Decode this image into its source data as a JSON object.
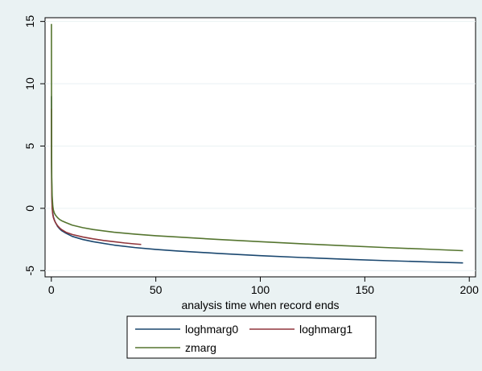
{
  "chart_data": {
    "type": "line",
    "title": "",
    "xlabel": "analysis time when record ends",
    "ylabel": "",
    "xlim": [
      -3,
      203
    ],
    "ylim": [
      -5.5,
      15.3
    ],
    "xticks": [
      0,
      50,
      100,
      150,
      200
    ],
    "yticks": [
      -5,
      0,
      5,
      10,
      15
    ],
    "xtick_labels": [
      "0",
      "50",
      "100",
      "150",
      "200"
    ],
    "ytick_labels": [
      "-5",
      "0",
      "5",
      "10",
      "15"
    ],
    "grid": "horizontal",
    "legend_position": "bottom",
    "series": [
      {
        "name": "loghmarg0",
        "color": "#1a476f",
        "x": [
          0.05,
          0.1,
          0.2,
          0.4,
          0.7,
          1,
          1.5,
          2,
          3,
          4,
          5,
          7,
          10,
          15,
          20,
          30,
          40,
          50,
          60,
          80,
          100,
          120,
          140,
          160,
          180,
          197
        ],
        "y": [
          9.0,
          4.0,
          1.5,
          0.2,
          -0.4,
          -0.7,
          -0.95,
          -1.15,
          -1.45,
          -1.65,
          -1.8,
          -2.0,
          -2.25,
          -2.5,
          -2.68,
          -2.95,
          -3.15,
          -3.3,
          -3.42,
          -3.62,
          -3.8,
          -3.95,
          -4.08,
          -4.2,
          -4.3,
          -4.38
        ]
      },
      {
        "name": "loghmarg1",
        "color": "#90353b",
        "x": [
          0.05,
          0.1,
          0.2,
          0.4,
          0.7,
          1,
          1.5,
          2,
          3,
          4,
          5,
          7,
          10,
          15,
          20,
          25,
          30,
          35,
          40,
          43
        ],
        "y": [
          8.0,
          3.5,
          1.2,
          0.0,
          -0.5,
          -0.75,
          -0.98,
          -1.15,
          -1.4,
          -1.58,
          -1.72,
          -1.92,
          -2.1,
          -2.3,
          -2.45,
          -2.58,
          -2.68,
          -2.78,
          -2.86,
          -2.9
        ]
      },
      {
        "name": "zmarg",
        "color": "#55752f",
        "x": [
          0.05,
          0.1,
          0.2,
          0.4,
          0.7,
          1,
          1.5,
          2,
          3,
          4,
          5,
          7,
          10,
          15,
          20,
          30,
          40,
          50,
          60,
          80,
          100,
          120,
          140,
          160,
          180,
          197
        ],
        "y": [
          14.8,
          6.0,
          2.5,
          1.0,
          0.2,
          -0.15,
          -0.4,
          -0.55,
          -0.75,
          -0.9,
          -1.0,
          -1.15,
          -1.35,
          -1.55,
          -1.7,
          -1.92,
          -2.07,
          -2.2,
          -2.3,
          -2.5,
          -2.68,
          -2.85,
          -3.0,
          -3.15,
          -3.28,
          -3.4
        ]
      }
    ]
  }
}
